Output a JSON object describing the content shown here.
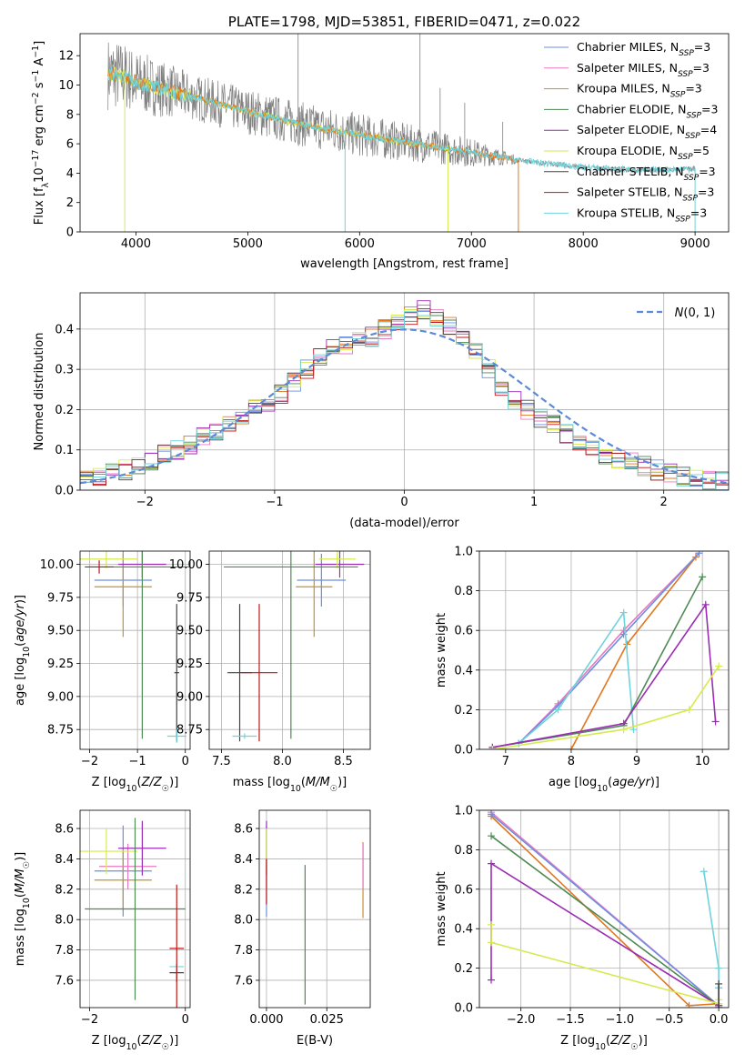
{
  "colors": {
    "chabrier_miles": "#6b8fe0",
    "salpeter_miles": "#e87ac0",
    "kroupa_miles": "#c8922a",
    "chabrier_elodie": "#4f8a55",
    "salpeter_elodie": "#9b2db5",
    "kroupa_elodie": "#d6ea4f",
    "chabrier_stelib": "#444444",
    "salpeter_stelib": "#c01818",
    "kroupa_stelib": "#6fd3dc",
    "orange": "#e07820",
    "grey": "#808080",
    "normal": "#5b8bd6"
  },
  "chart_data": [
    {
      "id": "spectrum",
      "type": "line",
      "title": "PLATE=1798, MJD=53851, FIBERID=0471, z=0.022",
      "xlabel": "wavelength [Angstrom, rest frame]",
      "ylabel": "Flux [f_λ 10^-17 erg cm^-2 s^-1 A^-1]",
      "xlim": [
        3500,
        9300
      ],
      "ylim": [
        0,
        13.5
      ],
      "xticks": [
        4000,
        5000,
        6000,
        7000,
        8000,
        9000
      ],
      "yticks": [
        0,
        2,
        4,
        6,
        8,
        10,
        12
      ],
      "legend_position": "top-right",
      "legend": [
        {
          "key": "chabrier_miles",
          "label": "Chabrier MILES, N",
          "sub": "SSP",
          "tail": "=3"
        },
        {
          "key": "salpeter_miles",
          "label": "Salpeter MILES, N",
          "sub": "SSP",
          "tail": "=3"
        },
        {
          "key": "kroupa_miles",
          "label": "Kroupa MILES, N",
          "sub": "SSP",
          "tail": "=3"
        },
        {
          "key": "chabrier_elodie",
          "label": "Chabrier ELODIE, N",
          "sub": "SSP",
          "tail": "=3"
        },
        {
          "key": "salpeter_elodie",
          "label": "Salpeter ELODIE, N",
          "sub": "SSP",
          "tail": "=4"
        },
        {
          "key": "kroupa_elodie",
          "label": "Kroupa ELODIE, N",
          "sub": "SSP",
          "tail": "=5"
        },
        {
          "key": "chabrier_stelib",
          "label": "Chabrier STELIB, N",
          "sub": "SSP",
          "tail": "=3"
        },
        {
          "key": "salpeter_stelib",
          "label": "Salpeter STELIB, N",
          "sub": "SSP",
          "tail": "=3"
        },
        {
          "key": "kroupa_stelib",
          "label": "Kroupa STELIB, N",
          "sub": "SSP",
          "tail": "=3"
        }
      ],
      "continuum": [
        [
          3750,
          10.8
        ],
        [
          3900,
          10.6
        ],
        [
          4000,
          10.2
        ],
        [
          4200,
          9.8
        ],
        [
          4500,
          9.2
        ],
        [
          5000,
          8.2
        ],
        [
          5500,
          7.3
        ],
        [
          6000,
          6.6
        ],
        [
          6500,
          6.0
        ],
        [
          7000,
          5.4
        ],
        [
          7500,
          4.8
        ],
        [
          8000,
          4.4
        ],
        [
          8500,
          4.2
        ],
        [
          9000,
          4.3
        ]
      ],
      "spectrum_noise": [
        [
          3750,
          2.5
        ],
        [
          4500,
          1.6
        ],
        [
          6000,
          1.5
        ],
        [
          7000,
          1.0
        ],
        [
          7400,
          0.3
        ],
        [
          9000,
          0.2
        ]
      ]
    },
    {
      "id": "residuals",
      "type": "histogram",
      "xlabel": "(data-model)/error",
      "ylabel": "Normed distribution",
      "xlim": [
        -2.5,
        2.5
      ],
      "ylim": [
        0,
        0.49
      ],
      "xticks": [
        -2,
        -1,
        0,
        1,
        2
      ],
      "yticks": [
        0.0,
        0.1,
        0.2,
        0.3,
        0.4
      ],
      "legend_position": "top-right",
      "normal_label": "N(0,1)",
      "bins": [
        -2.5,
        2.5,
        50
      ],
      "base_values": [
        0.03,
        0.035,
        0.045,
        0.05,
        0.06,
        0.07,
        0.09,
        0.1,
        0.11,
        0.13,
        0.14,
        0.16,
        0.18,
        0.2,
        0.22,
        0.24,
        0.27,
        0.3,
        0.33,
        0.35,
        0.36,
        0.38,
        0.38,
        0.4,
        0.42,
        0.43,
        0.45,
        0.43,
        0.41,
        0.38,
        0.34,
        0.3,
        0.26,
        0.22,
        0.2,
        0.18,
        0.16,
        0.14,
        0.12,
        0.1,
        0.09,
        0.08,
        0.07,
        0.06,
        0.05,
        0.04,
        0.035,
        0.03,
        0.025,
        0.02
      ]
    },
    {
      "id": "z_age",
      "type": "errorbar",
      "xlabel": "Z [log10(Z/Z☉)]",
      "ylabel": "age  [log10(age/yr)]",
      "xlim": [
        -2.2,
        0.1
      ],
      "ylim": [
        8.6,
        10.1
      ],
      "xticks": [
        -2,
        -1,
        0
      ],
      "yticks": [
        8.75,
        9.0,
        9.25,
        9.5,
        9.75,
        10.0
      ],
      "points": [
        {
          "key": "chabrier_miles",
          "x": -1.3,
          "xerr": 0.6,
          "y": 9.88,
          "yerr": 0.2
        },
        {
          "key": "kroupa_miles",
          "x": -1.3,
          "xerr": 0.6,
          "y": 9.83,
          "yerr": 0.38
        },
        {
          "key": "salpeter_elodie",
          "x": -0.9,
          "xerr": 0.5,
          "y": 10.0,
          "yerr": 0.1
        },
        {
          "key": "kroupa_elodie",
          "x": -1.65,
          "xerr": 0.65,
          "y": 10.04,
          "yerr": 0.07
        },
        {
          "key": "chabrier_elodie",
          "x": -0.9,
          "xerr": 1.1,
          "y": 9.98,
          "yerr": 1.3
        },
        {
          "key": "chabrier_stelib",
          "x": -0.18,
          "xerr": 0.05,
          "y": 9.18,
          "yerr": 0.52
        },
        {
          "key": "kroupa_stelib",
          "x": -0.18,
          "xerr": 0.2,
          "y": 8.7,
          "yerr": 0.05
        },
        {
          "key": "salpeter_stelib",
          "x": -1.8,
          "xerr": 0.3,
          "y": 9.98,
          "yerr": 0.05
        }
      ]
    },
    {
      "id": "mass_age",
      "type": "errorbar",
      "xlabel": "mass [log10(M/M☉)]",
      "ylabel": "",
      "xlim": [
        7.4,
        8.72
      ],
      "ylim": [
        8.6,
        10.1
      ],
      "xticks": [
        7.5,
        8.0,
        8.5
      ],
      "yticks": [
        8.75,
        9.0,
        9.25,
        9.5,
        9.75,
        10.0
      ],
      "points": [
        {
          "key": "chabrier_miles",
          "x": 8.32,
          "xerr": 0.2,
          "y": 9.88,
          "yerr": 0.2
        },
        {
          "key": "kroupa_miles",
          "x": 8.26,
          "xerr": 0.15,
          "y": 9.83,
          "yerr": 0.38
        },
        {
          "key": "salpeter_elodie",
          "x": 8.47,
          "xerr": 0.2,
          "y": 10.0,
          "yerr": 0.1
        },
        {
          "key": "kroupa_elodie",
          "x": 8.45,
          "xerr": 0.15,
          "y": 10.04,
          "yerr": 0.07
        },
        {
          "key": "chabrier_elodie",
          "x": 8.07,
          "xerr": 0.55,
          "y": 9.98,
          "yerr": 1.3
        },
        {
          "key": "chabrier_stelib",
          "x": 7.65,
          "xerr": 0.1,
          "y": 9.18,
          "yerr": 0.52
        },
        {
          "key": "kroupa_stelib",
          "x": 7.69,
          "xerr": 0.1,
          "y": 8.7,
          "yerr": 0.02
        },
        {
          "key": "salpeter_stelib",
          "x": 7.81,
          "xerr": 0.15,
          "y": 9.18,
          "yerr": 0.52
        }
      ]
    },
    {
      "id": "age_weight",
      "type": "line",
      "xlabel": "age  [log10(age/yr)]",
      "ylabel": "mass weight",
      "xlim": [
        6.6,
        10.4
      ],
      "ylim": [
        0,
        1.0
      ],
      "xticks": [
        7,
        8,
        9,
        10
      ],
      "yticks": [
        0.0,
        0.2,
        0.4,
        0.6,
        0.8,
        1.0
      ],
      "series": [
        {
          "key": "kroupa_miles",
          "x": [
            6.8,
            8.0,
            8.85,
            9.9
          ],
          "y": [
            0.0,
            0.0,
            0.53,
            0.97
          ]
        },
        {
          "key": "salpeter_miles",
          "x": [
            7.2,
            7.8,
            8.8,
            9.95
          ],
          "y": [
            0.03,
            0.23,
            0.6,
            0.99
          ]
        },
        {
          "key": "chabrier_miles",
          "x": [
            7.2,
            7.8,
            8.8,
            9.95
          ],
          "y": [
            0.03,
            0.22,
            0.58,
            0.99
          ]
        },
        {
          "key": "kroupa_stelib",
          "x": [
            7.2,
            7.8,
            8.8,
            8.95
          ],
          "y": [
            0.03,
            0.2,
            0.69,
            0.1
          ]
        },
        {
          "key": "chabrier_elodie",
          "x": [
            6.8,
            8.8,
            10.0
          ],
          "y": [
            0.01,
            0.12,
            0.87
          ]
        },
        {
          "key": "salpeter_elodie",
          "x": [
            6.8,
            8.8,
            10.05,
            10.2
          ],
          "y": [
            0.01,
            0.13,
            0.73,
            0.14
          ]
        },
        {
          "key": "kroupa_elodie",
          "x": [
            6.8,
            8.8,
            9.8,
            10.25
          ],
          "y": [
            0.0,
            0.1,
            0.2,
            0.42
          ]
        }
      ]
    },
    {
      "id": "z_mass",
      "type": "errorbar",
      "xlabel": "Z [log10(Z/Z☉)]",
      "ylabel": "mass [log10(M/M☉)]",
      "xlim": [
        -2.2,
        0.1
      ],
      "ylim": [
        7.42,
        8.72
      ],
      "xticks": [
        -2,
        0
      ],
      "yticks": [
        7.6,
        7.8,
        8.0,
        8.2,
        8.4,
        8.6
      ],
      "points": [
        {
          "key": "chabrier_miles",
          "x": -1.3,
          "xerr": 0.6,
          "y": 8.32,
          "yerr": 0.3
        },
        {
          "key": "kroupa_miles",
          "x": -1.3,
          "xerr": 0.6,
          "y": 8.26,
          "yerr": 0.2
        },
        {
          "key": "salpeter_miles",
          "x": -1.2,
          "xerr": 0.6,
          "y": 8.35,
          "yerr": 0.15
        },
        {
          "key": "salpeter_elodie",
          "x": -0.9,
          "xerr": 0.5,
          "y": 8.47,
          "yerr": 0.18
        },
        {
          "key": "kroupa_elodie",
          "x": -1.65,
          "xerr": 0.65,
          "y": 8.45,
          "yerr": 0.15
        },
        {
          "key": "chabrier_elodie",
          "x": -1.05,
          "xerr": 1.05,
          "y": 8.07,
          "yerr": 0.6
        },
        {
          "key": "chabrier_stelib",
          "x": -0.18,
          "xerr": 0.15,
          "y": 7.65,
          "yerr": 0.06
        },
        {
          "key": "kroupa_stelib",
          "x": -0.18,
          "xerr": 0.15,
          "y": 7.69,
          "yerr": 0.02
        },
        {
          "key": "salpeter_stelib",
          "x": -0.18,
          "xerr": 0.15,
          "y": 7.81,
          "yerr": 0.42
        }
      ]
    },
    {
      "id": "ebv_mass",
      "type": "errorbar",
      "xlabel": "E(B-V)",
      "ylabel": "",
      "xlim": [
        -0.003,
        0.043
      ],
      "ylim": [
        7.42,
        8.72
      ],
      "xticks": [
        0.0,
        0.025
      ],
      "xtick_labels": [
        "0.000",
        "0.025"
      ],
      "yticks": [
        7.6,
        7.8,
        8.0,
        8.2,
        8.4,
        8.6
      ],
      "points": [
        {
          "key": "chabrier_miles",
          "x": 0.0,
          "xerr": 0.0,
          "y": 8.32,
          "yerr": 0.3
        },
        {
          "key": "salpeter_elodie",
          "x": 0.0,
          "xerr": 0.0,
          "y": 8.47,
          "yerr": 0.18
        },
        {
          "key": "kroupa_elodie",
          "x": 0.0,
          "xerr": 0.0,
          "y": 8.45,
          "yerr": 0.15
        },
        {
          "key": "salpeter_stelib",
          "x": 0.0,
          "xerr": 0.0,
          "y": 8.25,
          "yerr": 0.15
        },
        {
          "key": "chabrier_elodie",
          "x": 0.016,
          "xerr": 0.0,
          "y": 7.9,
          "yerr": 0.46
        },
        {
          "key": "kroupa_miles",
          "x": 0.04,
          "xerr": 0.0,
          "y": 8.26,
          "yerr": 0.25
        },
        {
          "key": "salpeter_miles",
          "x": 0.04,
          "xerr": 0.0,
          "y": 8.35,
          "yerr": 0.15
        }
      ]
    },
    {
      "id": "z_weight",
      "type": "line",
      "xlabel": "Z [log10(Z/Z☉)]",
      "ylabel": "mass weight",
      "xlim": [
        -2.42,
        0.1
      ],
      "ylim": [
        0,
        1.0
      ],
      "xticks": [
        -2.0,
        -1.5,
        -1.0,
        -0.5,
        0.0
      ],
      "xtick_labels": [
        "−2.0",
        "−1.5",
        "−1.0",
        "−0.5",
        "0.0"
      ],
      "yticks": [
        0.0,
        0.2,
        0.4,
        0.6,
        0.8,
        1.0
      ],
      "series": [
        {
          "key": "kroupa_miles",
          "x": [
            -2.3,
            -0.3,
            0.0
          ],
          "y": [
            0.97,
            0.01,
            0.02
          ]
        },
        {
          "key": "salpeter_miles",
          "x": [
            -2.3,
            0.0,
            0.0
          ],
          "y": [
            0.99,
            0.01,
            0.1
          ]
        },
        {
          "key": "chabrier_miles",
          "x": [
            -2.3,
            0.0
          ],
          "y": [
            0.98,
            0.01
          ]
        },
        {
          "key": "chabrier_elodie",
          "x": [
            -2.3,
            0.0
          ],
          "y": [
            0.87,
            0.01
          ]
        },
        {
          "key": "salpeter_elodie",
          "x": [
            -2.3,
            -2.3,
            0.0
          ],
          "y": [
            0.14,
            0.73,
            0.01
          ]
        },
        {
          "key": "kroupa_elodie",
          "x": [
            -2.3,
            -2.3,
            0.0,
            0.0
          ],
          "y": [
            0.42,
            0.33,
            0.02,
            0.04
          ]
        },
        {
          "key": "kroupa_stelib",
          "x": [
            -0.15,
            0.0,
            0.0
          ],
          "y": [
            0.69,
            0.2,
            0.1
          ]
        },
        {
          "key": "chabrier_stelib",
          "x": [
            0.0,
            0.0
          ],
          "y": [
            0.12,
            0.0
          ]
        }
      ]
    }
  ]
}
